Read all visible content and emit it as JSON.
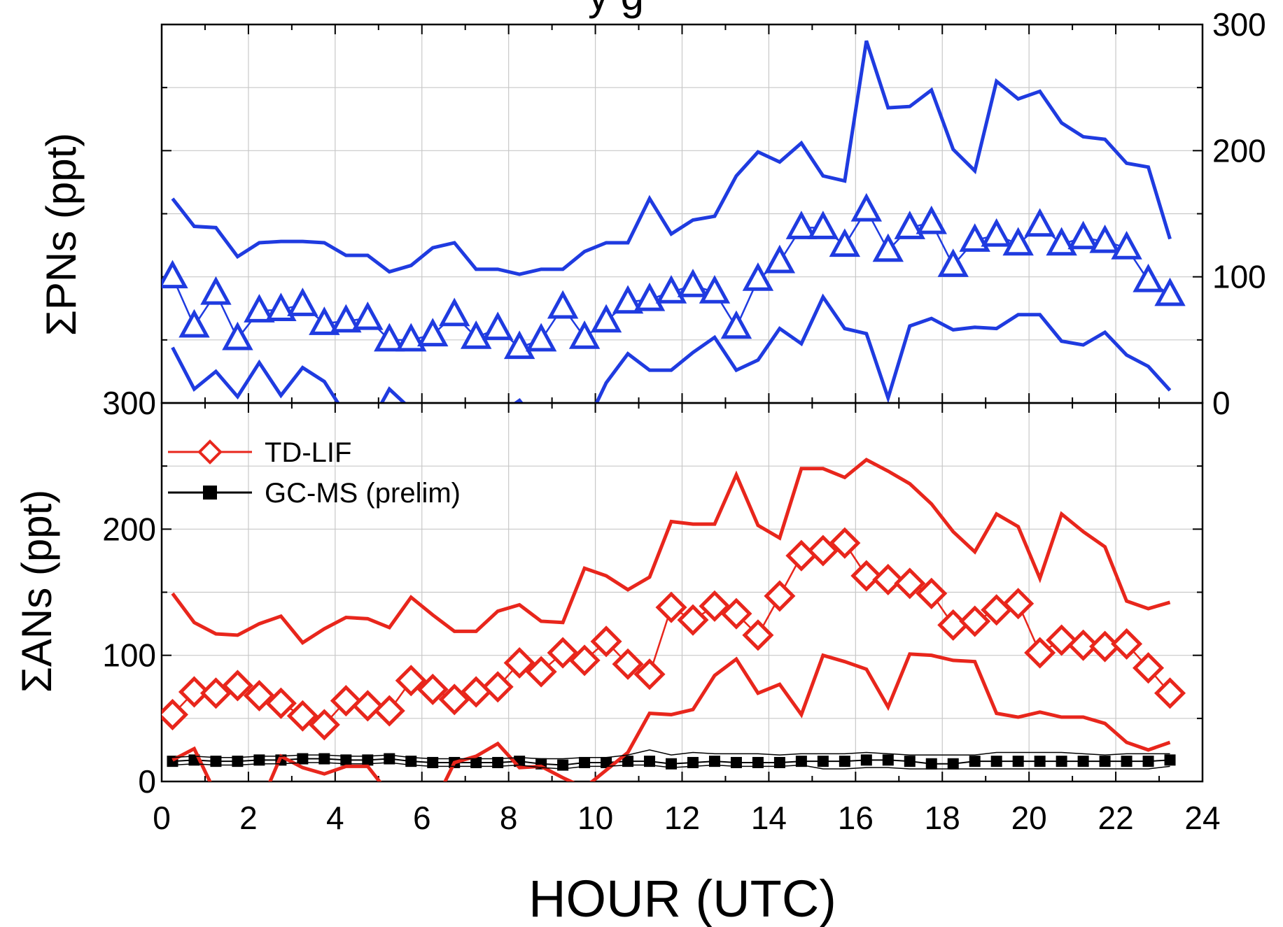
{
  "title_fragment": "y          g",
  "chart_data": [
    {
      "type": "line",
      "panel": "top",
      "ylabel": "ΣPNs (ppt)",
      "xlabel": "",
      "xlim": [
        0,
        24
      ],
      "ylim": [
        0,
        300
      ],
      "y_axis_side": "right",
      "y_ticks": [
        "0",
        "100",
        "200",
        "300"
      ],
      "grid": true,
      "x": [
        0.25,
        0.75,
        1.25,
        1.75,
        2.25,
        2.75,
        3.25,
        3.75,
        4.25,
        4.75,
        5.25,
        5.75,
        6.25,
        6.75,
        7.25,
        7.75,
        8.25,
        8.75,
        9.25,
        9.75,
        10.25,
        10.75,
        11.25,
        11.75,
        12.25,
        12.75,
        13.25,
        13.75,
        14.25,
        14.75,
        15.25,
        15.75,
        16.25,
        16.75,
        17.25,
        17.75,
        18.25,
        18.75,
        19.25,
        19.75,
        20.25,
        20.75,
        21.25,
        21.75,
        22.25,
        22.75,
        23.25
      ],
      "series": [
        {
          "color": "#1f3be0",
          "marker": "open-triangle",
          "values": [
            100,
            61,
            87,
            51,
            73,
            74,
            78,
            63,
            65,
            67,
            50,
            50,
            54,
            70,
            52,
            59,
            44,
            50,
            76,
            52,
            65,
            80,
            82,
            88,
            93,
            88,
            60,
            98,
            112,
            139,
            139,
            125,
            153,
            121,
            139,
            143,
            109,
            129,
            133,
            126,
            141,
            126,
            131,
            128,
            123,
            97,
            86
          ]
        },
        {
          "color": "#1f3be0",
          "marker": "none",
          "role": "upper bound",
          "values": [
            162,
            140,
            139,
            116,
            127,
            128,
            128,
            127,
            117,
            117,
            104,
            109,
            123,
            127,
            106,
            106,
            102,
            106,
            106,
            120,
            127,
            127,
            162,
            134,
            145,
            148,
            180,
            199,
            191,
            206,
            180,
            176,
            287,
            234,
            235,
            248,
            201,
            184,
            255,
            241,
            247,
            222,
            211,
            209,
            190,
            187,
            130
          ]
        },
        {
          "color": "#1f3be0",
          "marker": "none",
          "role": "lower bound",
          "values": [
            44,
            11,
            25,
            5,
            32,
            6,
            28,
            17,
            -10,
            -20,
            11,
            -5,
            -25,
            -30,
            -25,
            -10,
            2,
            -20,
            -40,
            -20,
            16,
            39,
            26,
            26,
            40,
            52,
            26,
            34,
            59,
            47,
            84,
            59,
            55,
            4,
            61,
            67,
            58,
            60,
            59,
            70,
            70,
            49,
            46,
            56,
            38,
            29,
            10
          ]
        }
      ]
    },
    {
      "type": "line",
      "panel": "bottom",
      "ylabel": "ΣANs (ppt)",
      "xlabel": "HOUR (UTC)",
      "xlim": [
        0,
        24
      ],
      "ylim": [
        0,
        300
      ],
      "y_axis_side": "left",
      "y_ticks": [
        "0",
        "100",
        "200",
        "300"
      ],
      "x_ticks": [
        "0",
        "2",
        "4",
        "6",
        "8",
        "10",
        "12",
        "14",
        "16",
        "18",
        "20",
        "22",
        "24"
      ],
      "grid": true,
      "legend_position": "top-left",
      "x": [
        0.25,
        0.75,
        1.25,
        1.75,
        2.25,
        2.75,
        3.25,
        3.75,
        4.25,
        4.75,
        5.25,
        5.75,
        6.25,
        6.75,
        7.25,
        7.75,
        8.25,
        8.75,
        9.25,
        9.75,
        10.25,
        10.75,
        11.25,
        11.75,
        12.25,
        12.75,
        13.25,
        13.75,
        14.25,
        14.75,
        15.25,
        15.75,
        16.25,
        16.75,
        17.25,
        17.75,
        18.25,
        18.75,
        19.25,
        19.75,
        20.25,
        20.75,
        21.25,
        21.75,
        22.25,
        22.75,
        23.25
      ],
      "series": [
        {
          "name": "TD-LIF",
          "color": "#e8261c",
          "marker": "open-diamond",
          "values": [
            53,
            71,
            70,
            76,
            68,
            62,
            52,
            45,
            64,
            60,
            56,
            80,
            73,
            65,
            71,
            75,
            94,
            87,
            102,
            96,
            111,
            93,
            85,
            138,
            128,
            139,
            133,
            116,
            147,
            179,
            183,
            189,
            163,
            160,
            157,
            149,
            124,
            127,
            136,
            141,
            102,
            112,
            108,
            107,
            109,
            90,
            70
          ]
        },
        {
          "name": "GC-MS (prelim)",
          "color": "#000000",
          "marker": "filled-square",
          "values": [
            16,
            17,
            16,
            16,
            17,
            17,
            18,
            18,
            17,
            17,
            18,
            16,
            15,
            15,
            15,
            15,
            16,
            14,
            13,
            15,
            15,
            16,
            16,
            14,
            15,
            16,
            15,
            15,
            15,
            16,
            16,
            16,
            17,
            17,
            16,
            14,
            14,
            16,
            16,
            16,
            16,
            16,
            16,
            16,
            16,
            16,
            17
          ]
        },
        {
          "color": "#e8261c",
          "marker": "none",
          "role": "upper bound",
          "values": [
            149,
            126,
            117,
            116,
            125,
            131,
            110,
            121,
            130,
            129,
            122,
            146,
            132,
            119,
            119,
            135,
            140,
            127,
            126,
            169,
            163,
            152,
            162,
            206,
            204,
            204,
            243,
            203,
            193,
            248,
            248,
            241,
            255,
            246,
            236,
            220,
            198,
            182,
            212,
            202,
            161,
            212,
            198,
            186,
            143,
            137,
            142
          ]
        },
        {
          "color": "#e8261c",
          "marker": "none",
          "role": "lower bound",
          "values": [
            17,
            26,
            -10,
            -30,
            -20,
            20,
            11,
            6,
            12,
            12,
            -10,
            -20,
            -20,
            15,
            20,
            30,
            11,
            12,
            3,
            -5,
            9,
            23,
            54,
            53,
            57,
            84,
            97,
            70,
            77,
            53,
            100,
            95,
            89,
            59,
            101,
            100,
            96,
            95,
            54,
            51,
            55,
            51,
            51,
            46,
            31,
            25,
            31
          ]
        },
        {
          "color": "#000000",
          "marker": "none",
          "role": "upper bound",
          "values": [
            19,
            20,
            19,
            19,
            20,
            20,
            21,
            21,
            20,
            20,
            21,
            19,
            18,
            18,
            18,
            18,
            19,
            18,
            18,
            19,
            19,
            21,
            25,
            21,
            23,
            22,
            22,
            22,
            21,
            22,
            22,
            22,
            23,
            22,
            21,
            21,
            21,
            21,
            23,
            23,
            23,
            23,
            22,
            21,
            22,
            22,
            22
          ]
        },
        {
          "color": "#000000",
          "marker": "none",
          "role": "lower bound",
          "values": [
            13,
            14,
            13,
            13,
            14,
            14,
            15,
            15,
            14,
            14,
            15,
            13,
            12,
            12,
            12,
            12,
            13,
            11,
            10,
            12,
            12,
            13,
            13,
            11,
            12,
            13,
            12,
            12,
            12,
            13,
            10,
            10,
            11,
            11,
            10,
            10,
            10,
            10,
            10,
            10,
            10,
            10,
            10,
            10,
            10,
            10,
            12
          ]
        }
      ]
    }
  ]
}
